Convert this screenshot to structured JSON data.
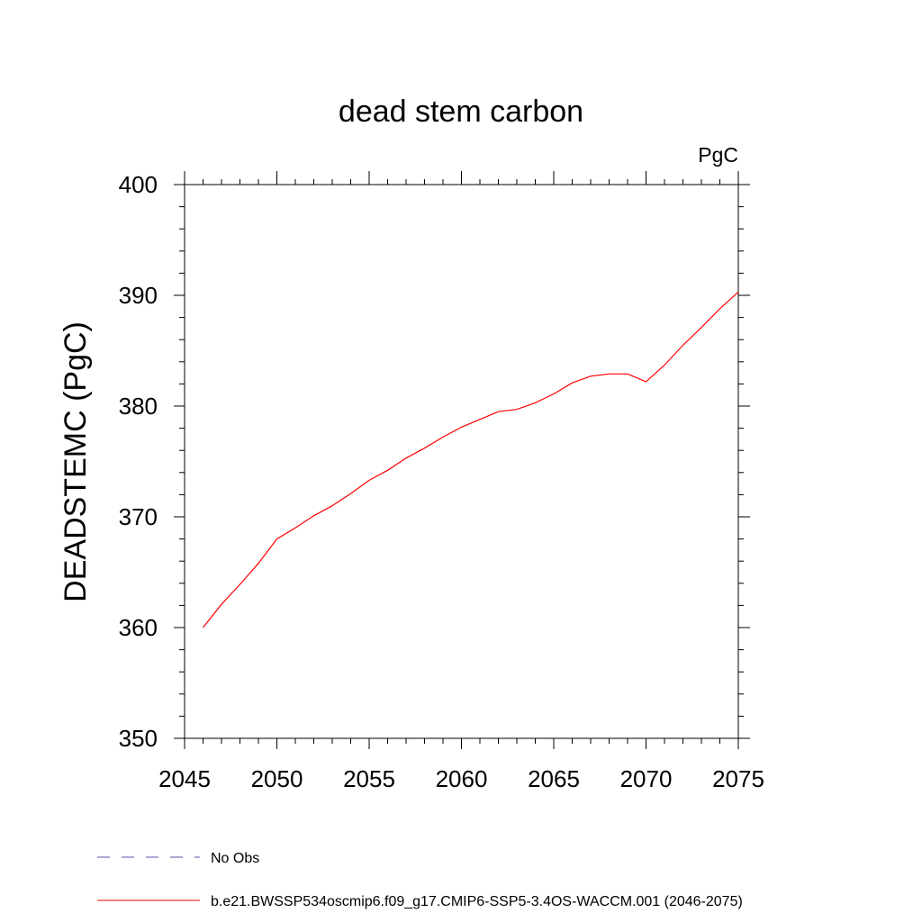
{
  "chart_data": {
    "type": "line",
    "title": "dead stem carbon",
    "units_label": "PgC",
    "ylabel": "DEADSTEMC  (PgC)",
    "xlabel": "",
    "xlim": [
      2045,
      2075
    ],
    "ylim": [
      350,
      400
    ],
    "xticks": [
      2045,
      2050,
      2055,
      2060,
      2065,
      2070,
      2075
    ],
    "yticks": [
      350,
      360,
      370,
      380,
      390,
      400
    ],
    "grid": false,
    "legend_position": "bottom",
    "series": [
      {
        "name": "b.e21.BWSSP534oscmip6.f09_g17.CMIP6-SSP5-3.4OS-WACCM.001 (2046-2075)",
        "color": "#ff0000",
        "style": "solid",
        "x": [
          2046,
          2047,
          2048,
          2049,
          2050,
          2051,
          2052,
          2053,
          2054,
          2055,
          2056,
          2057,
          2058,
          2059,
          2060,
          2061,
          2062,
          2063,
          2064,
          2065,
          2066,
          2067,
          2068,
          2069,
          2070,
          2071,
          2072,
          2073,
          2074,
          2075
        ],
        "values": [
          360.0,
          362.1,
          363.9,
          365.8,
          368.0,
          369.0,
          370.1,
          371.0,
          372.1,
          373.3,
          374.2,
          375.3,
          376.2,
          377.2,
          378.1,
          378.8,
          379.5,
          379.7,
          380.3,
          381.1,
          382.1,
          382.7,
          382.9,
          382.9,
          382.2,
          383.7,
          385.5,
          387.1,
          388.8,
          390.3
        ]
      }
    ],
    "legend": [
      {
        "label": "No Obs",
        "color": "#5555aa",
        "style": "dashed"
      },
      {
        "label": "b.e21.BWSSP534oscmip6.f09_g17.CMIP6-SSP5-3.4OS-WACCM.001 (2046-2075)",
        "color": "#ff0000",
        "style": "solid"
      }
    ]
  }
}
